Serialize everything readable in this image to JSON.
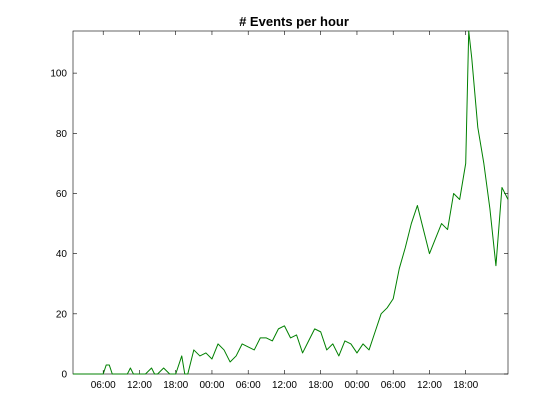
{
  "chart_data": {
    "type": "line",
    "title": "# Events per hour",
    "xlabel": "",
    "ylabel": "",
    "xlim": [
      1,
      73
    ],
    "ylim": [
      0,
      114
    ],
    "x_ticks": [
      {
        "x": 6,
        "label": "06:00"
      },
      {
        "x": 12,
        "label": "12:00"
      },
      {
        "x": 18,
        "label": "18:00"
      },
      {
        "x": 24,
        "label": "00:00"
      },
      {
        "x": 30,
        "label": "06:00"
      },
      {
        "x": 36,
        "label": "12:00"
      },
      {
        "x": 42,
        "label": "18:00"
      },
      {
        "x": 48,
        "label": "00:00"
      },
      {
        "x": 54,
        "label": "06:00"
      },
      {
        "x": 60,
        "label": "12:00"
      },
      {
        "x": 66,
        "label": "18:00"
      }
    ],
    "y_ticks": [
      0,
      20,
      40,
      60,
      80,
      100
    ],
    "grid": false,
    "series": [
      {
        "color": "#008000",
        "x": [
          1,
          2,
          3,
          4,
          5,
          6,
          6.5,
          7,
          7.5,
          8,
          9,
          10,
          10.5,
          11,
          12,
          13,
          14,
          14.5,
          15,
          16,
          17,
          17.5,
          18,
          19,
          19.5,
          20,
          21,
          22,
          23,
          24,
          25,
          26,
          27,
          28,
          29,
          30,
          31,
          32,
          33,
          34,
          35,
          36,
          37,
          38,
          39,
          40,
          41,
          42,
          43,
          44,
          45,
          46,
          47,
          48,
          49,
          50,
          51,
          52,
          53,
          54,
          55,
          56,
          57,
          58,
          59,
          60,
          61,
          62,
          63,
          64,
          65,
          66,
          66.5,
          67,
          68,
          69,
          70,
          71,
          72,
          73
        ],
        "y": [
          0,
          0,
          0,
          0,
          0,
          0,
          3,
          3,
          0,
          0,
          0,
          0,
          2,
          0,
          0,
          0,
          2,
          0,
          0,
          2,
          0,
          0,
          0,
          6,
          0,
          0,
          8,
          6,
          7,
          5,
          10,
          8,
          4,
          6,
          10,
          9,
          8,
          12,
          12,
          11,
          15,
          16,
          12,
          13,
          7,
          11,
          15,
          14,
          8,
          10,
          6,
          11,
          10,
          7,
          10,
          8,
          14,
          20,
          22,
          25,
          35,
          42,
          50,
          56,
          48,
          40,
          45,
          50,
          48,
          60,
          58,
          70,
          114,
          105,
          82,
          70,
          55,
          36,
          62,
          58
        ]
      }
    ]
  }
}
